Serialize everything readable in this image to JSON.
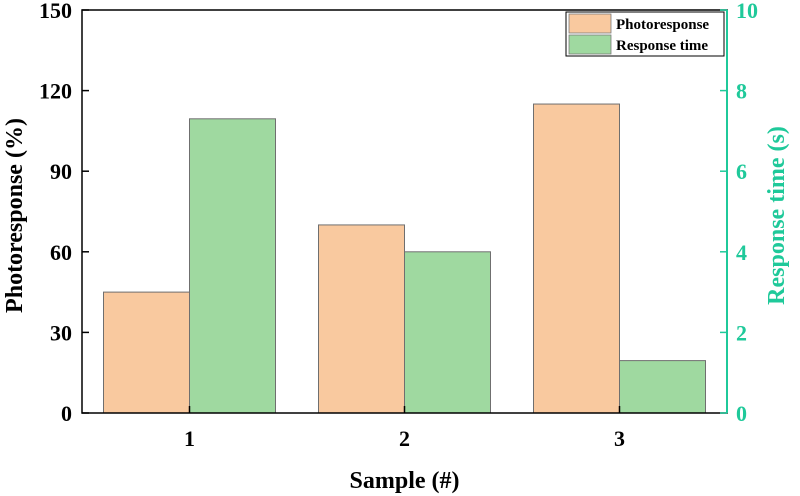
{
  "chart_data": {
    "type": "bar",
    "categories": [
      "1",
      "2",
      "3"
    ],
    "series": [
      {
        "name": "Photoresponse",
        "axis": "left",
        "values": [
          45,
          70,
          115
        ],
        "color": "#f9c99f"
      },
      {
        "name": "Response time",
        "axis": "right",
        "values": [
          7.3,
          4.0,
          1.3
        ],
        "color": "#9fd9a0"
      }
    ],
    "xlabel": "Sample (#)",
    "ylabel": "Photoresponse (%)",
    "ylabel_right": "Response time (s)",
    "ylim": [
      0,
      150
    ],
    "ylim_right": [
      0,
      10
    ],
    "yticks": [
      "0",
      "30",
      "60",
      "90",
      "120",
      "150"
    ],
    "yticks_right": [
      "0",
      "2",
      "4",
      "6",
      "8",
      "10"
    ],
    "right_axis_color": "#1fc99a",
    "legend_position": "top-right",
    "grid": false
  }
}
